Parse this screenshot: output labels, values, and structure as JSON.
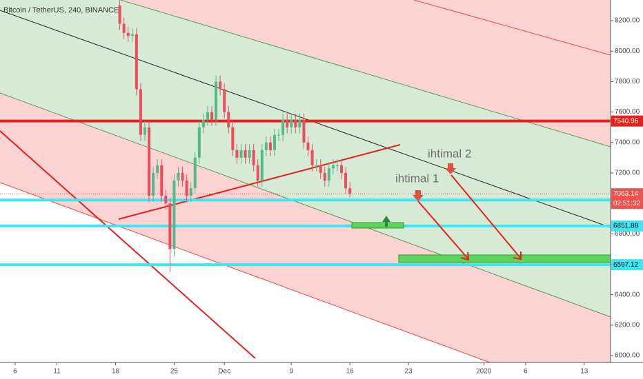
{
  "chart_data": {
    "type": "candlestick",
    "title": "Bitcoin / TetherUS, 240, BINANCE",
    "up_color": "#53b987",
    "down_color": "#eb4d5c",
    "x": [
      18.5,
      19,
      19.5,
      20,
      20.5,
      21,
      21.5,
      22,
      22.5,
      23,
      23.5,
      24,
      24.5,
      25,
      25.5,
      26,
      26.5,
      27,
      27.5,
      28,
      28.5,
      29,
      29.5,
      30,
      30.5,
      31,
      31.5,
      32,
      32.5,
      33,
      33.5,
      34,
      34.5,
      35,
      35.5,
      36,
      36.5,
      37,
      37.5,
      38,
      38.5,
      39,
      39.5,
      40,
      40.5,
      41,
      41.5,
      42,
      42.5,
      43,
      43.5,
      44,
      44.5,
      45,
      45.5,
      46
    ],
    "open": [
      8300,
      8180,
      8120,
      8100,
      8110,
      7750,
      7450,
      7500,
      7050,
      7200,
      7250,
      7050,
      7000,
      6700,
      7150,
      7200,
      7150,
      7050,
      7100,
      7300,
      7500,
      7550,
      7600,
      7550,
      7800,
      7750,
      7600,
      7500,
      7350,
      7300,
      7350,
      7300,
      7350,
      7250,
      7150,
      7350,
      7400,
      7350,
      7450,
      7450,
      7550,
      7500,
      7550,
      7500,
      7550,
      7400,
      7350,
      7250,
      7250,
      7200,
      7150,
      7230,
      7250,
      7250,
      7200,
      7100
    ],
    "high": [
      8340,
      8220,
      8160,
      8150,
      8150,
      7790,
      7540,
      7540,
      7240,
      7290,
      7290,
      7090,
      7040,
      7190,
      7240,
      7240,
      7190,
      7140,
      7340,
      7540,
      7590,
      7640,
      7640,
      7840,
      7840,
      7790,
      7640,
      7540,
      7390,
      7390,
      7390,
      7390,
      7390,
      7290,
      7390,
      7440,
      7440,
      7490,
      7490,
      7590,
      7590,
      7590,
      7590,
      7590,
      7590,
      7440,
      7390,
      7290,
      7290,
      7240,
      7270,
      7290,
      7290,
      7290,
      7240,
      7140
    ],
    "low": [
      8140,
      8080,
      8060,
      8060,
      7710,
      7410,
      7410,
      7010,
      7010,
      7160,
      7010,
      6960,
      6550,
      6650,
      7110,
      7110,
      7010,
      7010,
      7060,
      7260,
      7460,
      7510,
      7510,
      7510,
      7710,
      7560,
      7460,
      7310,
      7260,
      7260,
      7260,
      7260,
      7210,
      7110,
      7110,
      7310,
      7310,
      7310,
      7410,
      7410,
      7460,
      7460,
      7460,
      7460,
      7360,
      7310,
      7210,
      7210,
      7160,
      7110,
      7110,
      7190,
      7210,
      7160,
      7060,
      7040
    ],
    "close": [
      8180,
      8120,
      8100,
      8110,
      7750,
      7450,
      7500,
      7050,
      7200,
      7250,
      7050,
      7000,
      6700,
      7150,
      7200,
      7150,
      7050,
      7100,
      7300,
      7500,
      7550,
      7600,
      7550,
      7800,
      7750,
      7600,
      7500,
      7350,
      7300,
      7350,
      7300,
      7350,
      7250,
      7150,
      7350,
      7400,
      7350,
      7450,
      7450,
      7550,
      7500,
      7550,
      7500,
      7550,
      7400,
      7350,
      7250,
      7250,
      7200,
      7150,
      7230,
      7250,
      7250,
      7200,
      7100,
      7063
    ],
    "xlim": [
      4.19,
      77.15
    ],
    "xticks": [
      {
        "value": 6,
        "label": "6"
      },
      {
        "value": 11,
        "label": "11"
      },
      {
        "value": 18,
        "label": "18"
      },
      {
        "value": 25,
        "label": "25"
      },
      {
        "value": 31,
        "label": "Dec"
      },
      {
        "value": 39,
        "label": "9"
      },
      {
        "value": 46,
        "label": "16"
      },
      {
        "value": 53,
        "label": "23"
      },
      {
        "value": 62,
        "label": "2020"
      },
      {
        "value": 67,
        "label": "6"
      },
      {
        "value": 74,
        "label": "13"
      }
    ],
    "ylim": [
      5955,
      8336
    ],
    "yticks": [
      {
        "value": 6000,
        "label": "6000.00"
      },
      {
        "value": 6200,
        "label": "6200.00"
      },
      {
        "value": 6400,
        "label": "6400.00"
      },
      {
        "value": 6600,
        "label": "6600.00"
      },
      {
        "value": 6800,
        "label": "6800.00"
      },
      {
        "value": 7000,
        "label": "7000.00"
      },
      {
        "value": 7200,
        "label": "7200.00"
      },
      {
        "value": 7400,
        "label": "7400.00"
      },
      {
        "value": 7600,
        "label": "7600.00"
      },
      {
        "value": 7800,
        "label": "7800.00"
      },
      {
        "value": 8000,
        "label": "8000.00"
      },
      {
        "value": 8200,
        "label": "8200.00"
      }
    ],
    "price_lines": [
      {
        "value": 7540.96,
        "color": "#e8201c"
      },
      {
        "value": 7022.27,
        "color": "#3ee6f3"
      },
      {
        "value": 6851.88,
        "color": "#3ee6f3"
      },
      {
        "value": 6597.12,
        "color": "#3ee6f3"
      }
    ],
    "current_price": {
      "value": 7063.14,
      "countdown": "02:51:32",
      "color": "#ef5350"
    },
    "annotations": [
      "ihtimal 1",
      "ihtimal 2"
    ]
  }
}
